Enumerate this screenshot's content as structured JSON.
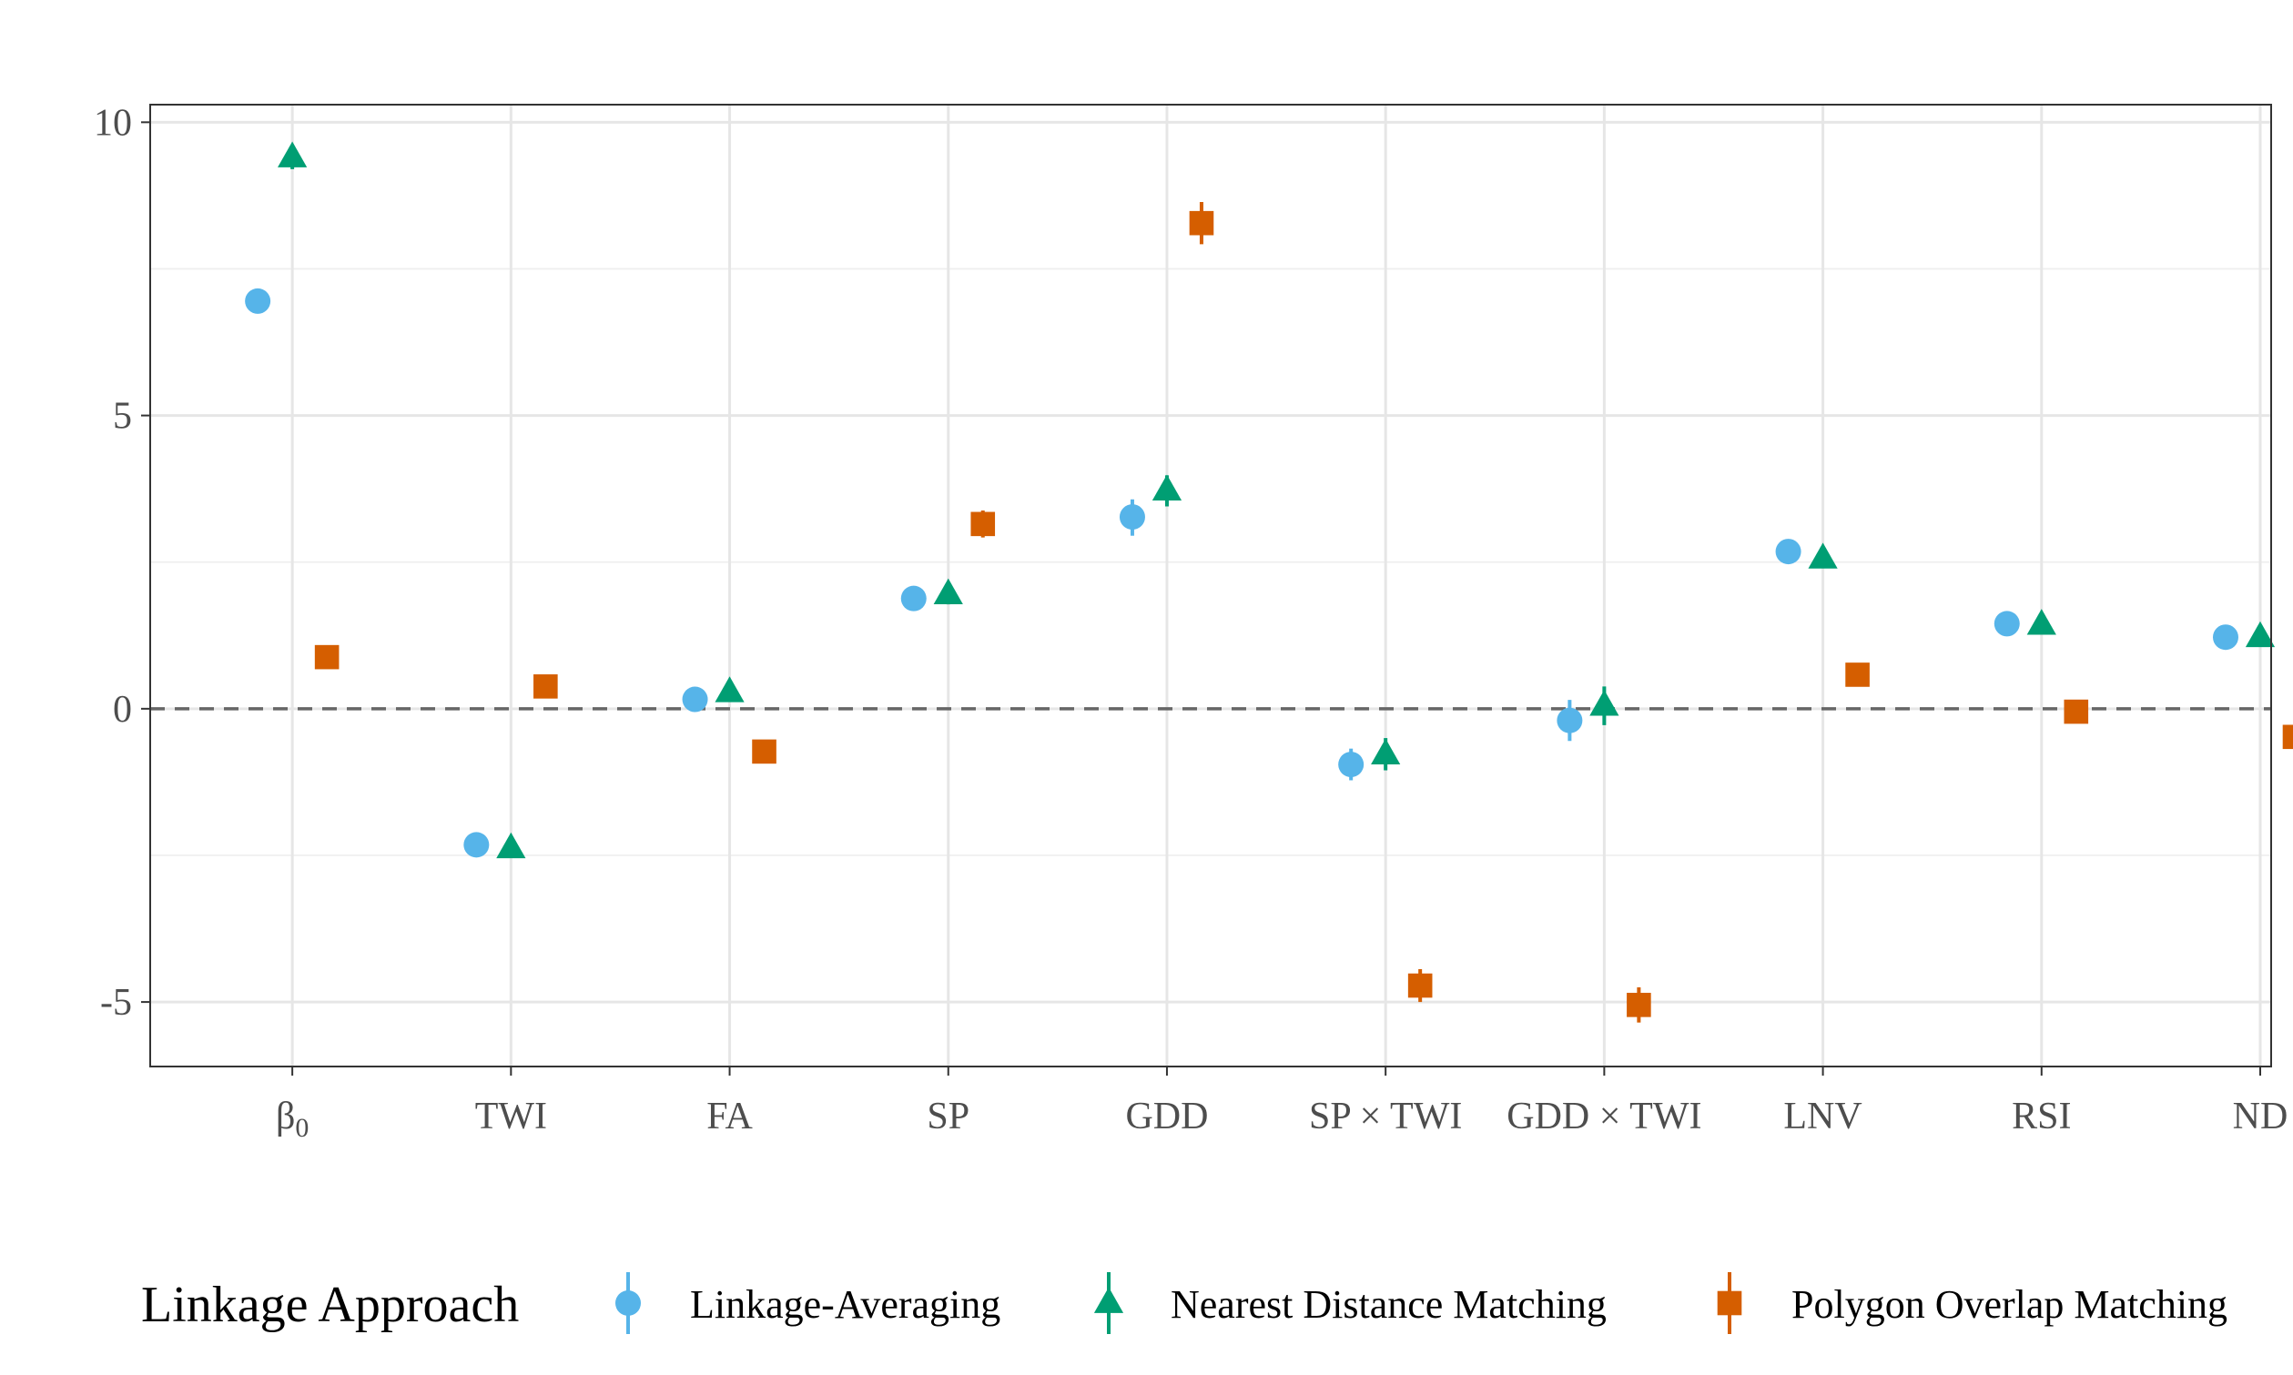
{
  "chart_data": {
    "type": "scatter",
    "title": "",
    "xlabel": "",
    "ylabel": "",
    "categories": [
      "β0",
      "TWI",
      "FA",
      "SP",
      "GDD",
      "SP × TWI",
      "GDD × TWI",
      "LNV",
      "RSI",
      "ND"
    ],
    "ylim": [
      -6.1,
      10.3
    ],
    "yticks": [
      "10",
      "5",
      "0",
      "-5"
    ],
    "ytick_values": [
      10,
      5,
      0,
      -5
    ],
    "reference_line": 0,
    "grid": true,
    "legend": {
      "title": "Linkage Approach",
      "position": "bottom"
    },
    "series": [
      {
        "name": "Linkage-Averaging",
        "marker": "circle",
        "color": "#56B4E9",
        "values": [
          6.95,
          -2.32,
          0.16,
          1.88,
          3.27,
          -0.95,
          -0.2,
          2.68,
          1.45,
          1.22
        ],
        "lower": [
          6.8,
          -2.5,
          0.1,
          1.7,
          2.95,
          -1.22,
          -0.55,
          2.62,
          1.33,
          1.15
        ],
        "upper": [
          7.1,
          -2.15,
          0.22,
          2.06,
          3.57,
          -0.68,
          0.15,
          2.75,
          1.57,
          1.29
        ]
      },
      {
        "name": "Nearest Distance Matching",
        "marker": "triangle",
        "color": "#009E73",
        "values": [
          9.4,
          -2.38,
          0.28,
          1.95,
          3.72,
          -0.78,
          0.05,
          2.56,
          1.43,
          1.22
        ],
        "lower": [
          9.2,
          -2.52,
          0.22,
          1.78,
          3.45,
          -1.05,
          -0.28,
          2.5,
          1.36,
          1.15
        ],
        "upper": [
          9.6,
          -2.24,
          0.34,
          2.12,
          3.98,
          -0.5,
          0.38,
          2.62,
          1.5,
          1.29
        ]
      },
      {
        "name": "Polygon Overlap Matching",
        "marker": "square",
        "color": "#D55E00",
        "values": [
          0.88,
          0.38,
          -0.73,
          3.15,
          8.28,
          -4.72,
          -5.05,
          0.58,
          -0.05,
          -0.48
        ],
        "lower": [
          0.72,
          0.22,
          -0.82,
          2.92,
          7.92,
          -5.0,
          -5.35,
          0.52,
          -0.12,
          -0.55
        ],
        "upper": [
          1.04,
          0.52,
          -0.64,
          3.38,
          8.64,
          -4.44,
          -4.75,
          0.64,
          0.02,
          -0.41
        ]
      }
    ]
  }
}
